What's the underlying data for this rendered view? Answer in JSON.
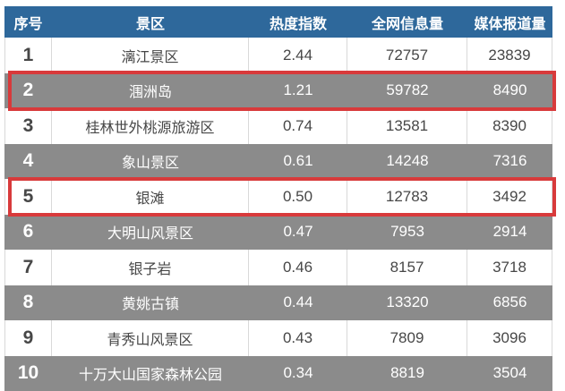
{
  "theme": {
    "header_bg": "#2e689b",
    "header_text": "#ffffff",
    "row_light_bg": "#ffffff",
    "row_light_text": "#474747",
    "row_dark_bg": "#8b8b8b",
    "row_dark_text": "#ffffff",
    "highlight_border": "#d83a3b",
    "grid_line": "#d9d9d9"
  },
  "table": {
    "columns": [
      "序号",
      "景区",
      "热度指数",
      "全网信息量",
      "媒体报道量"
    ],
    "rows": [
      {
        "rank": "1",
        "name": "漓江景区",
        "heat": "2.44",
        "info": "72757",
        "media": "23839",
        "highlighted": false
      },
      {
        "rank": "2",
        "name": "涠洲岛",
        "heat": "1.21",
        "info": "59782",
        "media": "8490",
        "highlighted": true
      },
      {
        "rank": "3",
        "name": "桂林世外桃源旅游区",
        "heat": "0.74",
        "info": "13581",
        "media": "8390",
        "highlighted": false
      },
      {
        "rank": "4",
        "name": "象山景区",
        "heat": "0.61",
        "info": "14248",
        "media": "7316",
        "highlighted": false
      },
      {
        "rank": "5",
        "name": "银滩",
        "heat": "0.50",
        "info": "12783",
        "media": "3492",
        "highlighted": true
      },
      {
        "rank": "6",
        "name": "大明山风景区",
        "heat": "0.47",
        "info": "7953",
        "media": "2914",
        "highlighted": false
      },
      {
        "rank": "7",
        "name": "银子岩",
        "heat": "0.46",
        "info": "8157",
        "media": "3718",
        "highlighted": false
      },
      {
        "rank": "8",
        "name": "黄姚古镇",
        "heat": "0.44",
        "info": "13320",
        "media": "6856",
        "highlighted": false
      },
      {
        "rank": "9",
        "name": "青秀山风景区",
        "heat": "0.43",
        "info": "7809",
        "media": "3096",
        "highlighted": false
      },
      {
        "rank": "10",
        "name": "十万大山国家森林公园",
        "heat": "0.34",
        "info": "8819",
        "media": "3504",
        "highlighted": false
      }
    ]
  },
  "chart_data": {
    "type": "table",
    "title": "",
    "columns": [
      "序号",
      "景区",
      "热度指数",
      "全网信息量",
      "媒体报道量"
    ],
    "rows": [
      [
        1,
        "漓江景区",
        2.44,
        72757,
        23839
      ],
      [
        2,
        "涠洲岛",
        1.21,
        59782,
        8490
      ],
      [
        3,
        "桂林世外桃源旅游区",
        0.74,
        13581,
        8390
      ],
      [
        4,
        "象山景区",
        0.61,
        14248,
        7316
      ],
      [
        5,
        "银滩",
        0.5,
        12783,
        3492
      ],
      [
        6,
        "大明山风景区",
        0.47,
        7953,
        2914
      ],
      [
        7,
        "银子岩",
        0.46,
        8157,
        3718
      ],
      [
        8,
        "黄姚古镇",
        0.44,
        13320,
        6856
      ],
      [
        9,
        "青秀山风景区",
        0.43,
        7809,
        3096
      ],
      [
        10,
        "十万大山国家森林公园",
        0.34,
        8819,
        3504
      ]
    ],
    "highlighted_ranks": [
      2,
      5
    ],
    "layout": {
      "zebra_striping": true,
      "header_position": "top"
    }
  }
}
